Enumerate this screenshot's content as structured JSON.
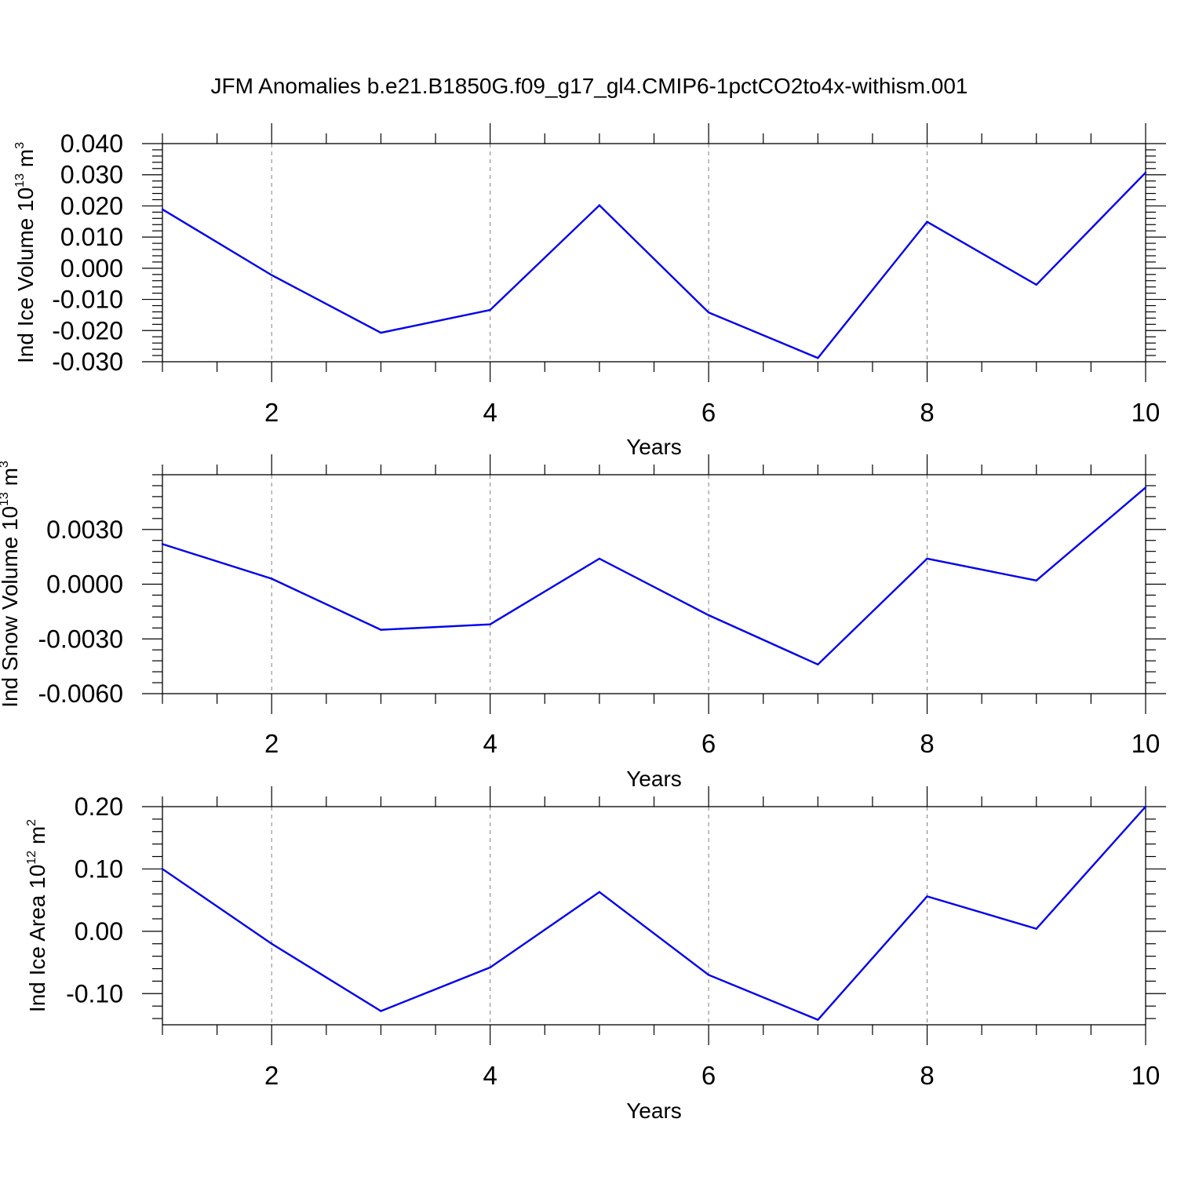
{
  "figure": {
    "title": "JFM Anomalies b.e21.B1850G.f09_g17_gl4.CMIP6-1pctCO2to4x-withism.001"
  },
  "colors": {
    "series": "#0000ee",
    "axes": "#000000",
    "grid": "#808080"
  },
  "chart_data": [
    {
      "type": "line",
      "xlabel": "Years",
      "ylabel": {
        "prefix": "Ind Ice Volume 10",
        "exponent": "13",
        "unit": " m",
        "unit_exponent": "3"
      },
      "xlim": [
        1,
        10
      ],
      "ylim": [
        -0.03,
        0.04
      ],
      "xticks": [
        2,
        4,
        6,
        8,
        10
      ],
      "yticks": [
        -0.03,
        -0.02,
        -0.01,
        0.0,
        0.01,
        0.02,
        0.03,
        0.04
      ],
      "ytick_labels": [
        "-0.030",
        "-0.020",
        "-0.010",
        "0.000",
        "0.010",
        "0.020",
        "0.030",
        "0.040"
      ],
      "grid": "vertical dashed at major x ticks",
      "x": [
        1,
        2,
        3,
        4,
        5,
        6,
        7,
        8,
        9,
        10
      ],
      "series": [
        {
          "values": [
            0.0189,
            -0.0022,
            -0.0207,
            -0.0134,
            0.0202,
            -0.0142,
            -0.0288,
            0.0149,
            -0.0053,
            0.0307
          ]
        }
      ]
    },
    {
      "type": "line",
      "xlabel": "Years",
      "ylabel": {
        "prefix": "Ind Snow Volume 10",
        "exponent": "13",
        "unit": " m",
        "unit_exponent": "3"
      },
      "xlim": [
        1,
        10
      ],
      "ylim": [
        -0.006,
        0.006
      ],
      "xticks": [
        2,
        4,
        6,
        8,
        10
      ],
      "yticks": [
        -0.006,
        -0.003,
        0.0,
        0.003
      ],
      "ytick_labels": [
        "-0.0060",
        "-0.0030",
        "0.0000",
        "0.0030"
      ],
      "grid": "vertical dashed at major x ticks",
      "x": [
        1,
        2,
        3,
        4,
        5,
        6,
        7,
        8,
        9,
        10
      ],
      "series": [
        {
          "values": [
            0.0022,
            0.0003,
            -0.0025,
            -0.0022,
            0.0014,
            -0.0017,
            -0.0044,
            0.0014,
            0.0002,
            0.0053
          ]
        }
      ]
    },
    {
      "type": "line",
      "xlabel": "Years",
      "ylabel": {
        "prefix": "Ind Ice Area 10",
        "exponent": "12",
        "unit": " m",
        "unit_exponent": "2"
      },
      "xlim": [
        1,
        10
      ],
      "ylim": [
        -0.15,
        0.2
      ],
      "xticks": [
        2,
        4,
        6,
        8,
        10
      ],
      "yticks": [
        -0.1,
        0.0,
        0.1,
        0.2
      ],
      "ytick_labels": [
        "-0.10",
        "0.00",
        "0.10",
        "0.20"
      ],
      "grid": "vertical dashed at major x ticks",
      "x": [
        1,
        2,
        3,
        4,
        5,
        6,
        7,
        8,
        9,
        10
      ],
      "series": [
        {
          "values": [
            0.1,
            -0.02,
            -0.128,
            -0.058,
            0.063,
            -0.07,
            -0.142,
            0.056,
            0.004,
            0.2
          ]
        }
      ]
    }
  ]
}
